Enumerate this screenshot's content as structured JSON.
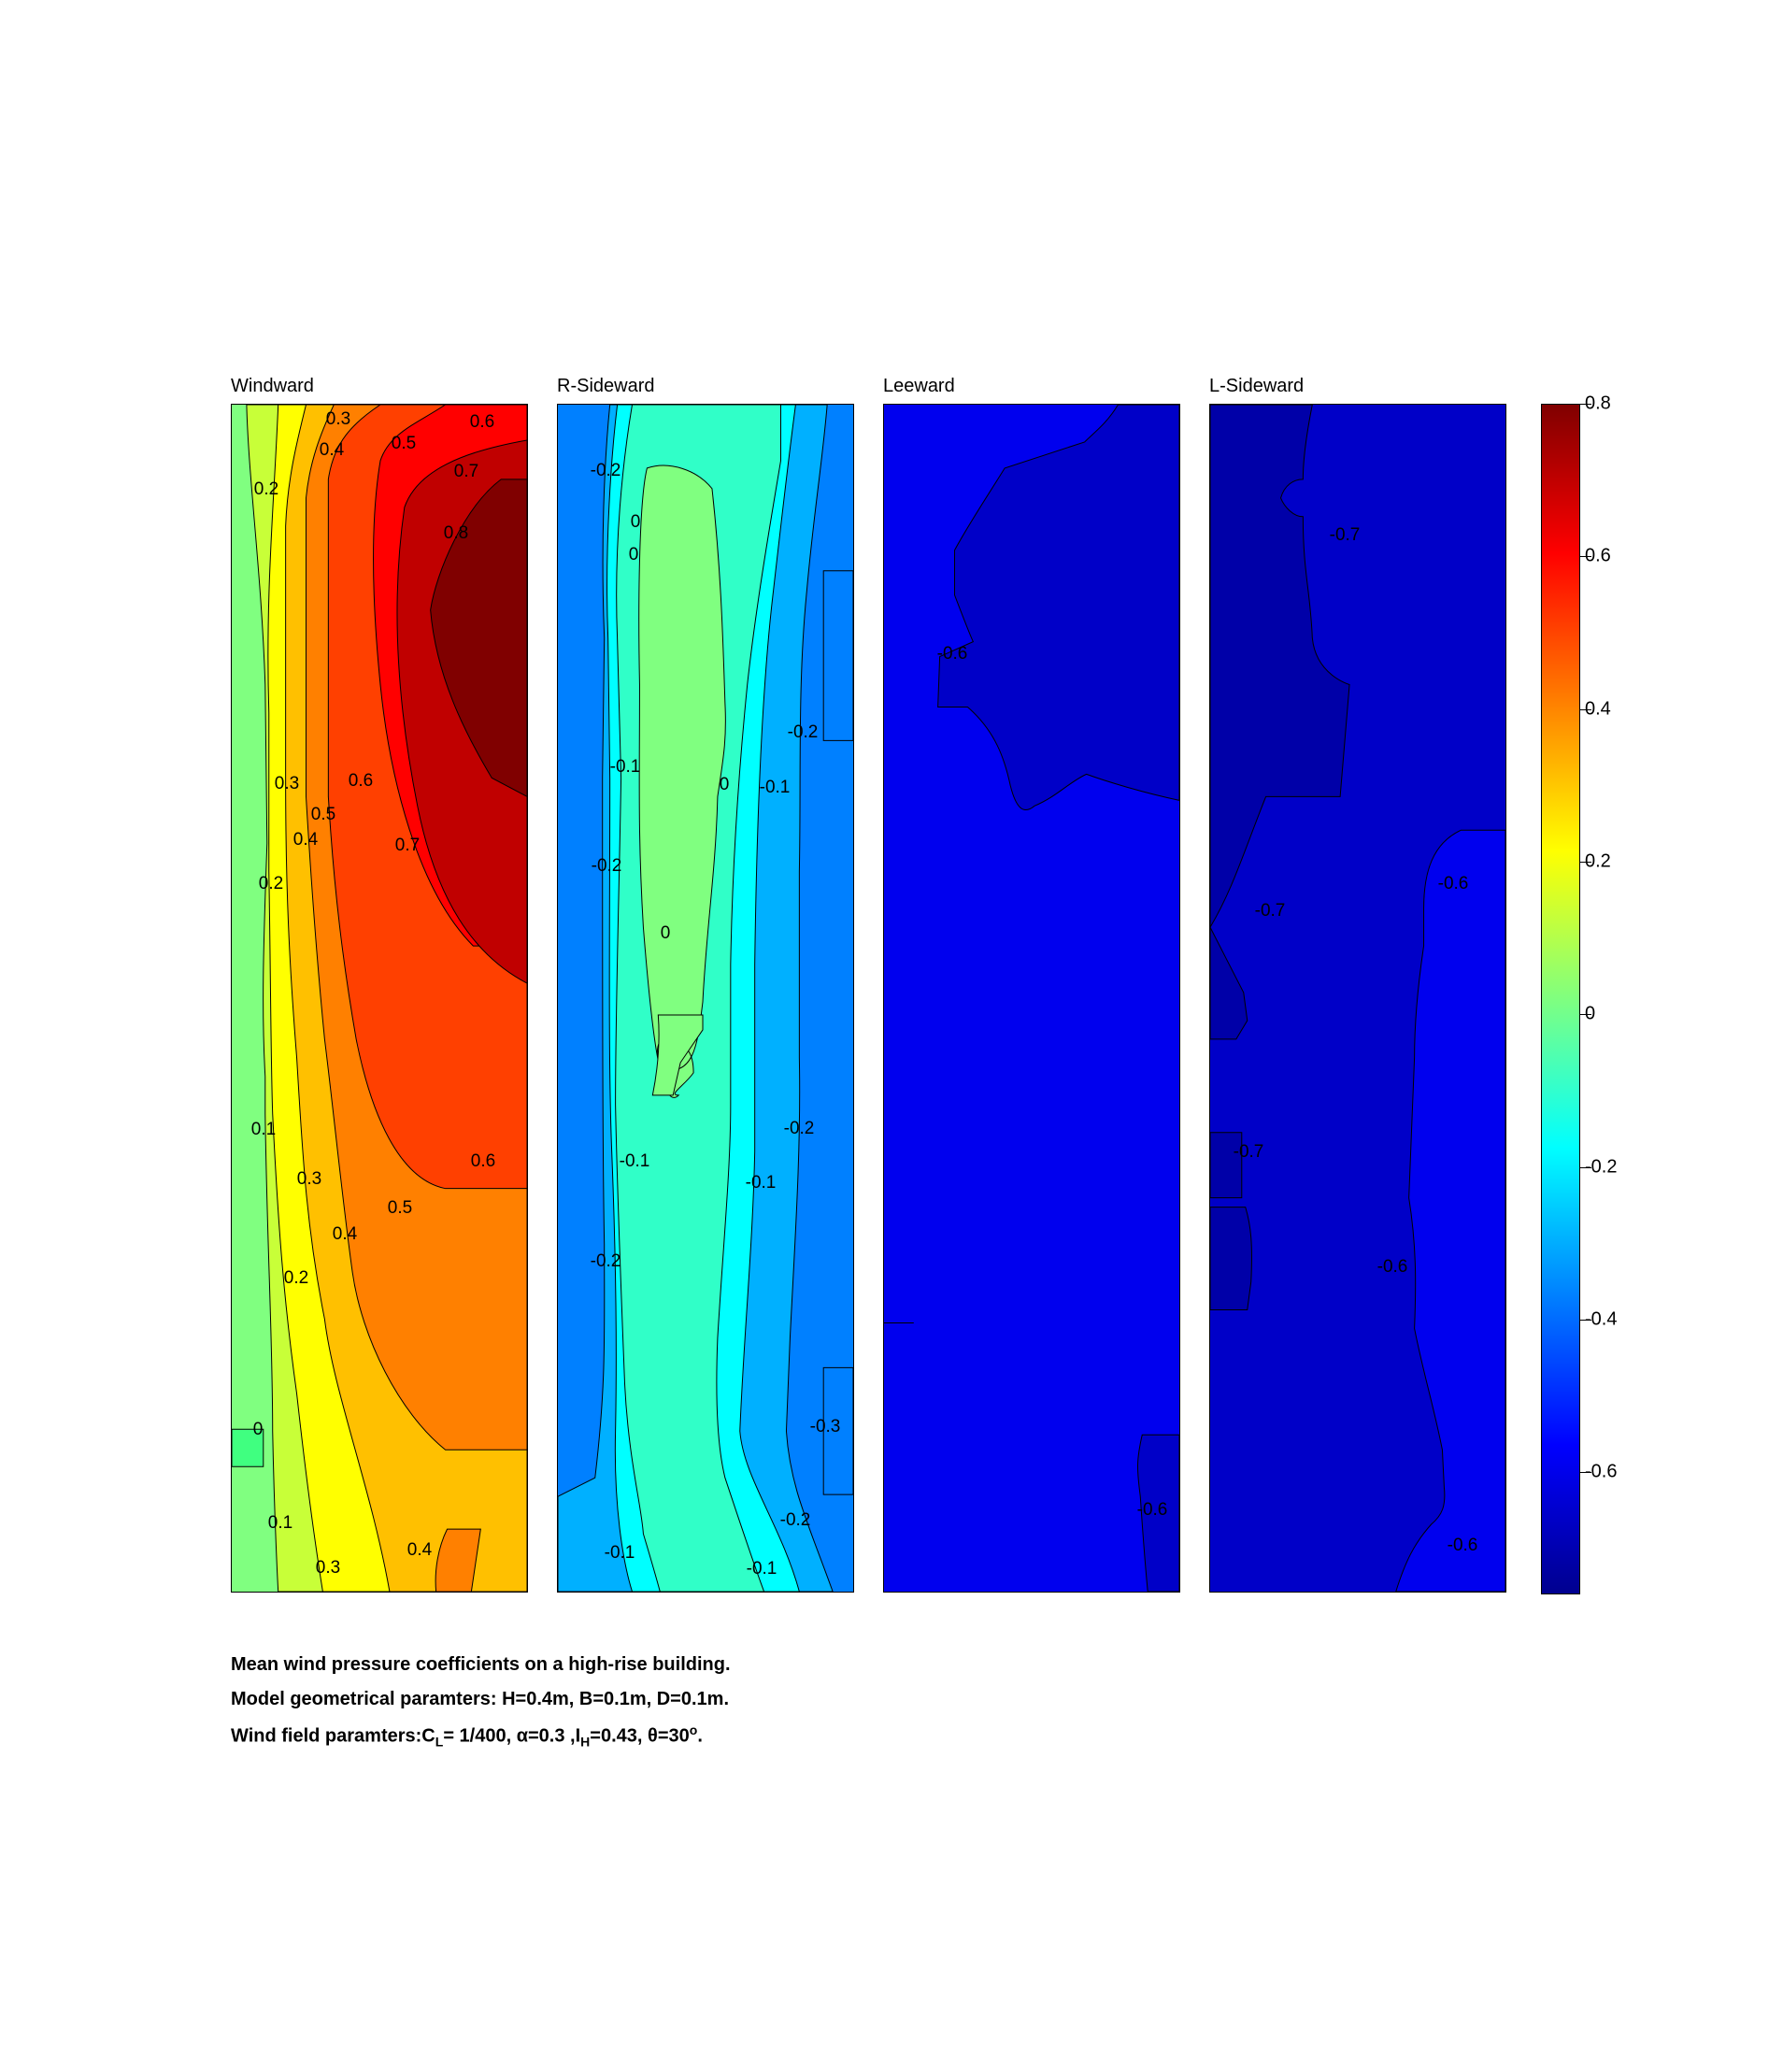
{
  "chart_data": {
    "type": "heatmap",
    "panels": [
      {
        "title": "Windward",
        "contour_labels": [
          "0.3",
          "0.4",
          "0.5",
          "0.6",
          "0.7",
          "0.8",
          "0.2",
          "0.3",
          "0.6",
          "0.5",
          "0.4",
          "0.7",
          "0.2",
          "0.1",
          "0.3",
          "0.5",
          "0.6",
          "0.4",
          "0.2",
          "0",
          "0.1",
          "0.4",
          "0.3"
        ]
      },
      {
        "title": "R-Sideward",
        "contour_labels": [
          "-0.2",
          "0",
          "0",
          "-0.2",
          "-0.1",
          "0",
          "-0.1",
          "-0.2",
          "0",
          "-0.2",
          "-0.1",
          "-0.1",
          "-0.2",
          "-0.3",
          "-0.2",
          "-0.1",
          "-0.1"
        ]
      },
      {
        "title": "Leeward",
        "contour_labels": [
          "-0.6",
          "-0.6"
        ]
      },
      {
        "title": "L-Sideward",
        "contour_labels": [
          "-0.7",
          "-0.6",
          "-0.7",
          "-0.7",
          "-0.6",
          "-0.6"
        ]
      }
    ],
    "colorbar": {
      "ticks": [
        "0.8",
        "0.6",
        "0.4",
        "0.2",
        "0",
        "-0.2",
        "-0.4",
        "-0.6"
      ],
      "tick_values": [
        0.8,
        0.6,
        0.4,
        0.2,
        0,
        -0.2,
        -0.4,
        -0.6
      ],
      "range": [
        -0.76,
        0.8
      ],
      "colormap": "jet"
    }
  },
  "caption": {
    "line1": "Mean wind pressure coefficients on a high-rise building.",
    "line2": "Model geometrical paramters: H=0.4m, B=0.1m, D=0.1m.",
    "line3_a": "Wind field paramters:C",
    "line3_b": "L",
    "line3_c": "= 1/400, α=0.3 ,I",
    "line3_d": "H",
    "line3_e": "=0.43, θ=30",
    "line3_f": "o",
    "line3_g": "."
  }
}
